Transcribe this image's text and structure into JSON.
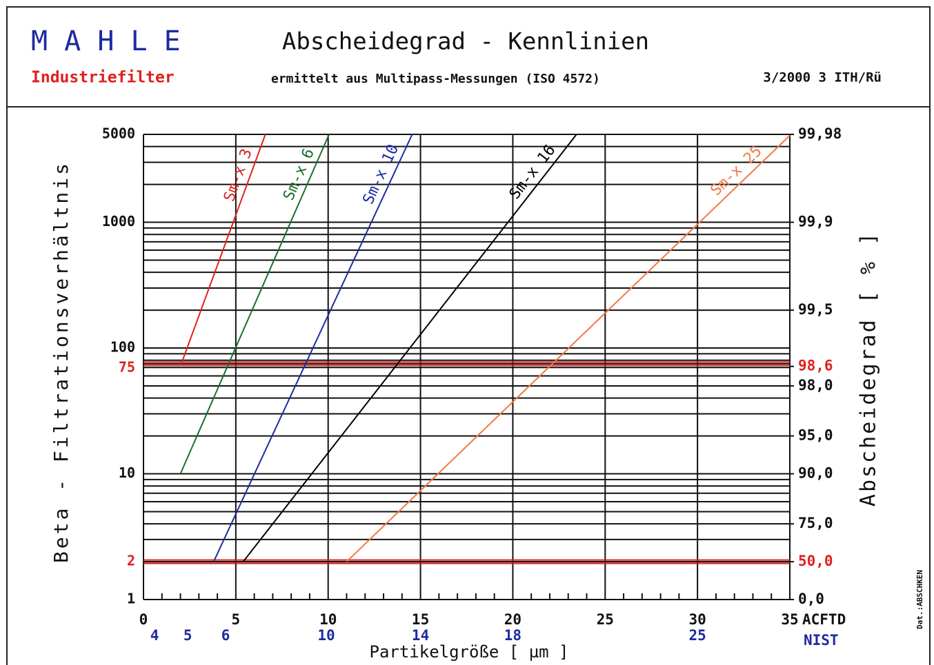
{
  "header": {
    "brand": "M A H L E",
    "division": "Industriefilter",
    "date_ref": "3/2000 3 ITH/Rü",
    "footer_code": "Dat.:ABSCHKEN"
  },
  "chart_data": {
    "type": "line",
    "title": "Abscheidegrad - Kennlinien",
    "subtitle": "ermittelt aus Multipass-Messungen (ISO 4572)",
    "xlabel": "Partikelgröße [ µm ]",
    "ylabel": "Beta - Filtrationsverhältnis",
    "y2label": "Abscheidegrad [ % ]",
    "x_unit_label": "ACFTD",
    "x2_unit_label": "NIST",
    "x2_color": "#1c2ba0",
    "xlim": [
      0,
      35
    ],
    "xticks": [
      0,
      5,
      10,
      15,
      20,
      25,
      30,
      35
    ],
    "xminorticks": [
      1,
      2,
      3,
      4,
      6,
      7,
      8,
      9,
      11,
      12,
      13,
      14,
      16,
      17,
      18,
      19,
      21,
      22,
      23,
      24,
      26,
      27,
      28,
      29,
      31,
      32,
      33,
      34
    ],
    "x2ticks": [
      {
        "value": 0.6,
        "label": "4"
      },
      {
        "value": 2.4,
        "label": "5"
      },
      {
        "value": 4.45,
        "label": "6"
      },
      {
        "value": 9.9,
        "label": "10"
      },
      {
        "value": 15,
        "label": "14"
      },
      {
        "value": 20,
        "label": "18"
      },
      {
        "value": 30,
        "label": "25"
      }
    ],
    "ylim": [
      1,
      5000
    ],
    "log_y": true,
    "yticks": [
      1,
      2,
      10,
      75,
      100,
      1000,
      5000
    ],
    "yminorticks": [
      2,
      3,
      4,
      5,
      6,
      7,
      8,
      9,
      20,
      30,
      40,
      50,
      60,
      70,
      80,
      90,
      200,
      300,
      400,
      500,
      600,
      700,
      800,
      900,
      2000,
      3000,
      4000
    ],
    "y2lim": [
      0,
      99.98
    ],
    "y2_transform": "percent_to_beta",
    "y2ticks": [
      {
        "value": 99.98,
        "label": "99,98"
      },
      {
        "value": 99.9,
        "label": "99,9"
      },
      {
        "value": 99.5,
        "label": "99,5"
      },
      {
        "value": 98.6,
        "label": "98,6",
        "color": "#e0201e"
      },
      {
        "value": 98.0,
        "label": "98,0"
      },
      {
        "value": 95.0,
        "label": "95,0"
      },
      {
        "value": 90.0,
        "label": "90,0"
      },
      {
        "value": 75.0,
        "label": "75,0"
      },
      {
        "value": 50.0,
        "label": "50,0",
        "color": "#e0201e"
      },
      {
        "value": 0.0,
        "label": "0,0"
      }
    ],
    "reference_lines": [
      {
        "value": 75,
        "color": "#e0201e"
      },
      {
        "value": 2,
        "color": "#e0201e"
      }
    ],
    "grid": true,
    "series": [
      {
        "name": "Sm-x 3",
        "color": "#e0201e",
        "x": [
          2.05,
          6.6
        ],
        "values": [
          75,
          5000
        ]
      },
      {
        "name": "Sm-x 6",
        "color": "#1a6e2a",
        "x": [
          2.0,
          10.05
        ],
        "values": [
          10,
          5000
        ]
      },
      {
        "name": "Sm-x 10",
        "color": "#1c2ba0",
        "x": [
          3.8,
          14.55
        ],
        "values": [
          2,
          5000
        ]
      },
      {
        "name": "Sm-x 16",
        "color": "#000000",
        "x": [
          5.4,
          23.45
        ],
        "values": [
          2,
          5000
        ]
      },
      {
        "name": "Sm-x 25",
        "color": "#f07a40",
        "x": [
          11.0,
          35
        ],
        "values": [
          2,
          4900
        ]
      }
    ]
  }
}
